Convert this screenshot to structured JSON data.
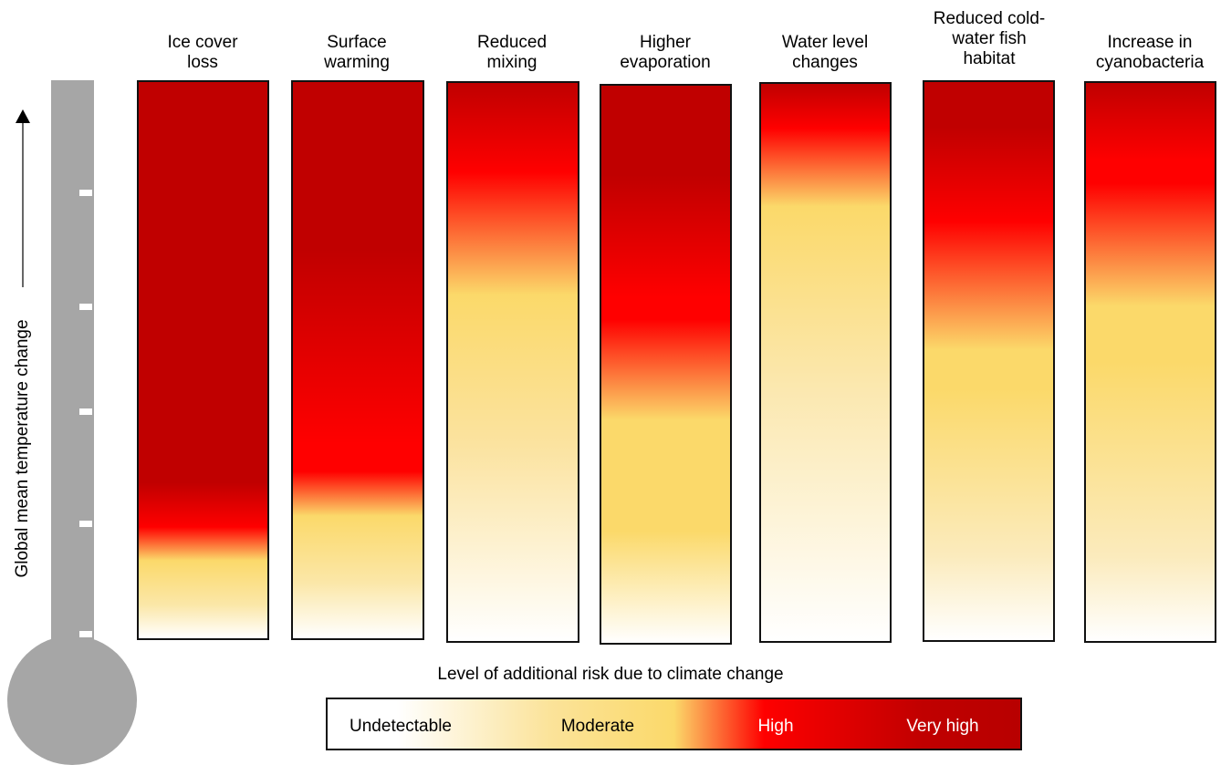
{
  "axis": {
    "label": "Global mean temperature change"
  },
  "colors": {
    "very_high": "#c00000",
    "high": "#ff0000",
    "moderate": "#fbd96a",
    "undetectable": "#ffffff"
  },
  "columns": [
    {
      "title": "Ice cover\nloss",
      "risk_profile": [
        [
          "#c00000",
          0
        ],
        [
          "#c00000",
          72
        ],
        [
          "#ff0000",
          80
        ],
        [
          "#fbd96a",
          86
        ],
        [
          "#fbe7a8",
          94
        ],
        [
          "#ffffff",
          100
        ]
      ]
    },
    {
      "title": "Surface\nwarming",
      "risk_profile": [
        [
          "#c00000",
          0
        ],
        [
          "#c00000",
          30
        ],
        [
          "#ff0000",
          65
        ],
        [
          "#ff0000",
          70
        ],
        [
          "#fbd96a",
          78
        ],
        [
          "#fbe7a8",
          90
        ],
        [
          "#ffffff",
          100
        ]
      ]
    },
    {
      "title": "Reduced\nmixing",
      "risk_profile": [
        [
          "#c00000",
          0
        ],
        [
          "#ff0000",
          16
        ],
        [
          "#fbd96a",
          38
        ],
        [
          "#fbe3a0",
          65
        ],
        [
          "#ffffff",
          100
        ]
      ]
    },
    {
      "title": "Higher\nevaporation",
      "risk_profile": [
        [
          "#c00000",
          0
        ],
        [
          "#c00000",
          16
        ],
        [
          "#ff0000",
          38
        ],
        [
          "#ff0000",
          42
        ],
        [
          "#fbd96a",
          60
        ],
        [
          "#fbd96a",
          80
        ],
        [
          "#ffffff",
          100
        ]
      ]
    },
    {
      "title": "Water level\nchanges",
      "risk_profile": [
        [
          "#c00000",
          0
        ],
        [
          "#ff0000",
          8
        ],
        [
          "#fbd96a",
          22
        ],
        [
          "#fbe8b0",
          55
        ],
        [
          "#ffffff",
          100
        ]
      ]
    },
    {
      "title": "Reduced cold-\nwater fish\nhabitat",
      "risk_profile": [
        [
          "#c00000",
          0
        ],
        [
          "#c00000",
          8
        ],
        [
          "#ff0000",
          25
        ],
        [
          "#fbd96a",
          48
        ],
        [
          "#fbd96a",
          55
        ],
        [
          "#fbebbd",
          85
        ],
        [
          "#ffffff",
          100
        ]
      ]
    },
    {
      "title": "Increase in\ncyanobacteria",
      "risk_profile": [
        [
          "#c00000",
          0
        ],
        [
          "#ff0000",
          14
        ],
        [
          "#ff0000",
          18
        ],
        [
          "#fbd96a",
          40
        ],
        [
          "#fbd96a",
          50
        ],
        [
          "#fbebbd",
          85
        ],
        [
          "#ffffff",
          100
        ]
      ]
    }
  ],
  "legend": {
    "title": "Level of additional risk due to climate change",
    "levels": [
      "Undetectable",
      "Moderate",
      "High",
      "Very high"
    ]
  }
}
